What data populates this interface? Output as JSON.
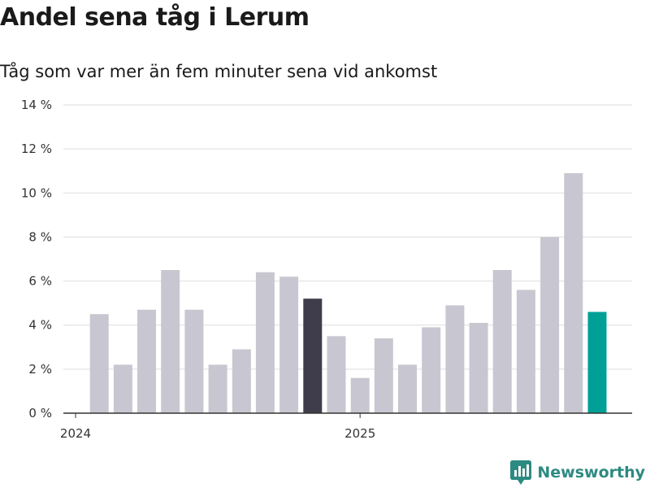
{
  "header": {
    "title": "Andel sena tåg i Lerum",
    "subtitle": "Tåg som var mer än fem minuter sena vid ankomst"
  },
  "chart_data": {
    "type": "bar",
    "title": "Andel sena tåg i Lerum",
    "subtitle": "Tåg som var mer än fem minuter sena vid ankomst",
    "xlabel": "",
    "ylabel": "",
    "ylim": [
      0,
      14
    ],
    "y_ticks": [
      0,
      2,
      4,
      6,
      8,
      10,
      12,
      14
    ],
    "y_tick_labels": [
      "0 %",
      "2 %",
      "4 %",
      "6 %",
      "8 %",
      "10 %",
      "12 %",
      "14 %"
    ],
    "x_tick_labels": [
      "2024",
      "2025"
    ],
    "x_tick_months": [
      "2024-01",
      "2025-01"
    ],
    "grid": true,
    "categories": [
      "2024-02",
      "2024-03",
      "2024-04",
      "2024-05",
      "2024-06",
      "2024-07",
      "2024-08",
      "2024-09",
      "2024-10",
      "2024-11",
      "2024-12",
      "2025-01",
      "2025-02",
      "2025-03",
      "2025-04",
      "2025-05",
      "2025-06",
      "2025-07",
      "2025-08",
      "2025-09",
      "2025-10",
      "2025-11"
    ],
    "values": [
      4.5,
      2.2,
      4.7,
      6.5,
      4.7,
      2.2,
      2.9,
      6.4,
      6.2,
      5.2,
      3.5,
      1.6,
      3.4,
      2.2,
      3.9,
      4.9,
      4.1,
      6.5,
      5.6,
      8.0,
      10.9,
      4.6
    ],
    "highlight": {
      "2024-11": "#3f3d4b",
      "2025-11": "#00a096"
    },
    "colors": {
      "bar": "#c8c7d1",
      "grid": "#dddddd",
      "axis": "#333333"
    }
  },
  "branding": {
    "name": "Newsworthy",
    "color": "#2d8a82",
    "icon": "newsworthy-chart-icon"
  }
}
